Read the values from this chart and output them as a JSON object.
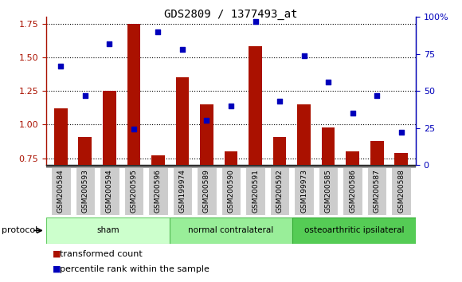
{
  "title": "GDS2809 / 1377493_at",
  "samples": [
    "GSM200584",
    "GSM200593",
    "GSM200594",
    "GSM200595",
    "GSM200596",
    "GSM199974",
    "GSM200589",
    "GSM200590",
    "GSM200591",
    "GSM200592",
    "GSM199973",
    "GSM200585",
    "GSM200586",
    "GSM200587",
    "GSM200588"
  ],
  "transformed_count": [
    1.12,
    0.91,
    1.25,
    1.75,
    0.77,
    1.35,
    1.15,
    0.8,
    1.58,
    0.91,
    1.15,
    0.98,
    0.8,
    0.88,
    0.79
  ],
  "percentile_rank": [
    67,
    47,
    82,
    24,
    90,
    78,
    30,
    40,
    97,
    43,
    74,
    56,
    35,
    47,
    22
  ],
  "groups": [
    {
      "label": "sham",
      "start": 0,
      "end": 5,
      "color": "#ccffcc",
      "edge": "#66cc66"
    },
    {
      "label": "normal contralateral",
      "start": 5,
      "end": 10,
      "color": "#99ee99",
      "edge": "#55bb55"
    },
    {
      "label": "osteoarthritic ipsilateral",
      "start": 10,
      "end": 15,
      "color": "#55cc55",
      "edge": "#33aa33"
    }
  ],
  "ylim_left": [
    0.7,
    1.8
  ],
  "ylim_right": [
    0,
    100
  ],
  "yticks_left": [
    0.75,
    1.0,
    1.25,
    1.5,
    1.75
  ],
  "yticks_right": [
    0,
    25,
    50,
    75,
    100
  ],
  "bar_color": "#aa1100",
  "dot_color": "#0000bb",
  "bar_width": 0.55,
  "background_color": "#ffffff",
  "plot_bg": "#ffffff",
  "tick_bg": "#cccccc",
  "protocol_label": "protocol"
}
